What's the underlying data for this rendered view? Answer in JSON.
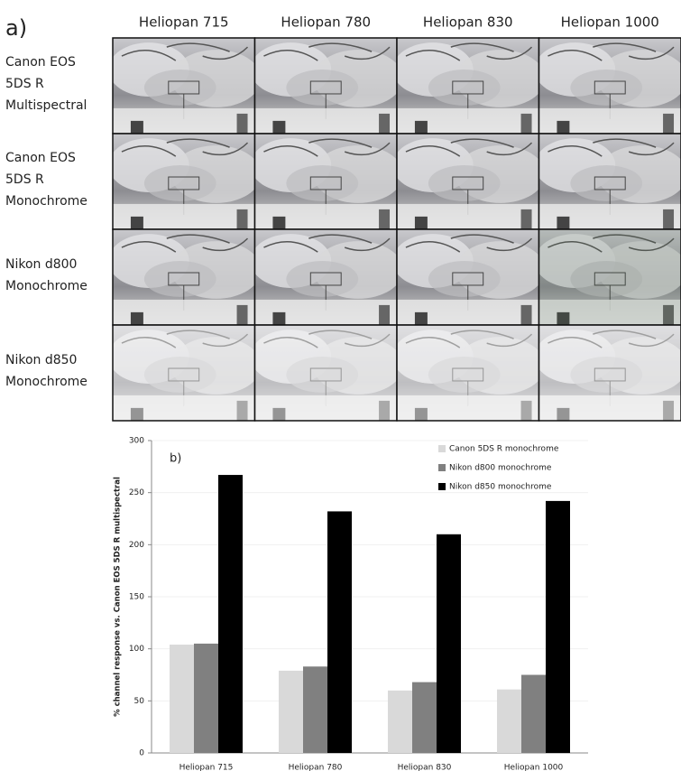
{
  "panel_a": {
    "label": "a)",
    "columns": [
      "Heliopan 715",
      "Heliopan 780",
      "Heliopan 830",
      "Heliopan 1000"
    ],
    "rows": [
      [
        "Canon EOS",
        "5DS R",
        "Multispectral"
      ],
      [
        "Canon EOS",
        "5DS R",
        "Monochrome"
      ],
      [
        "Nikon d800",
        "Monochrome"
      ],
      [
        "Nikon d850",
        "Monochrome"
      ]
    ]
  },
  "chart_data": {
    "type": "bar",
    "annotation": "b)",
    "y_label": "% channel response vs. Canon EOS 5DS R multispectral",
    "categories": [
      "Heliopan 715",
      "Heliopan 780",
      "Heliopan 830",
      "Heliopan 1000"
    ],
    "series": [
      {
        "name": "Canon 5DS R monochrome",
        "color": "#d9d9d9",
        "values": [
          104,
          79,
          60,
          61
        ]
      },
      {
        "name": "Nikon d800 monochrome",
        "color": "#808080",
        "values": [
          105,
          83,
          68,
          75
        ]
      },
      {
        "name": "Nikon d850 monochrome",
        "color": "#000000",
        "values": [
          267,
          232,
          210,
          242
        ]
      }
    ],
    "ylim": [
      0,
      300
    ],
    "yticks": [
      0,
      50,
      100,
      150,
      200,
      250,
      300
    ],
    "grid": true,
    "legend": "top-right"
  }
}
